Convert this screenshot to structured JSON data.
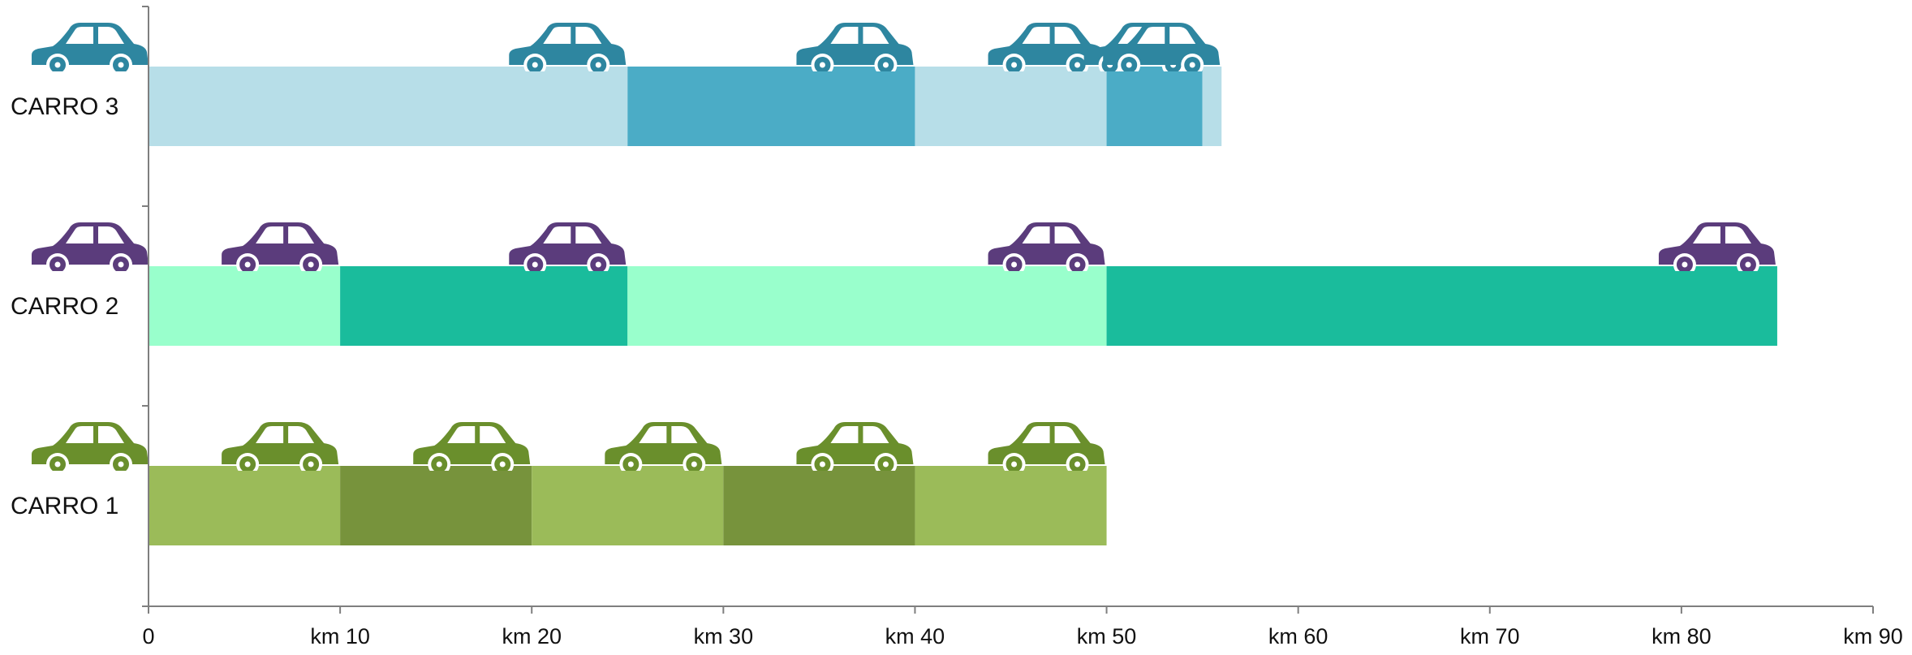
{
  "chart_data": {
    "type": "bar",
    "subtype": "stacked-horizontal",
    "title": "",
    "xlabel": "",
    "ylabel": "",
    "xlim": [
      0,
      90
    ],
    "x_ticks": [
      0,
      10,
      20,
      30,
      40,
      50,
      60,
      70,
      80,
      90
    ],
    "x_tick_labels": [
      "0",
      "km 10",
      "km 20",
      "km 30",
      "km 40",
      "km 50",
      "km 60",
      "km 70",
      "km 80",
      "km 90"
    ],
    "grid": false,
    "legend": "none",
    "categories": [
      "CARRO 3",
      "CARRO 2",
      "CARRO 1"
    ],
    "rows": [
      {
        "label": "CARRO 3",
        "segments": [
          25,
          15,
          10,
          5,
          1
        ],
        "colors": [
          "#b7dee8",
          "#4bacc6",
          "#b7dee8",
          "#4bacc6",
          "#b7dee8"
        ],
        "car_color": "#2e86a0",
        "car_icons": [
          0,
          25,
          40,
          50,
          55,
          56
        ]
      },
      {
        "label": "CARRO 2",
        "segments": [
          10,
          15,
          25,
          35
        ],
        "colors": [
          "#99ffcc",
          "#1abc9c",
          "#99ffcc",
          "#1abc9c"
        ],
        "car_color": "#5b3c7c",
        "car_icons": [
          0,
          10,
          25,
          50,
          85
        ]
      },
      {
        "label": "CARRO 1",
        "segments": [
          10,
          10,
          10,
          10,
          10
        ],
        "colors": [
          "#9bbb59",
          "#77933c",
          "#9bbb59",
          "#77933c",
          "#9bbb59"
        ],
        "car_color": "#6a8f2c",
        "car_icons": [
          0,
          10,
          20,
          30,
          40,
          50
        ]
      }
    ]
  },
  "icons": {
    "car": "car-icon"
  },
  "colors": {
    "axis": "#7f7f7f",
    "text": "#111111"
  }
}
